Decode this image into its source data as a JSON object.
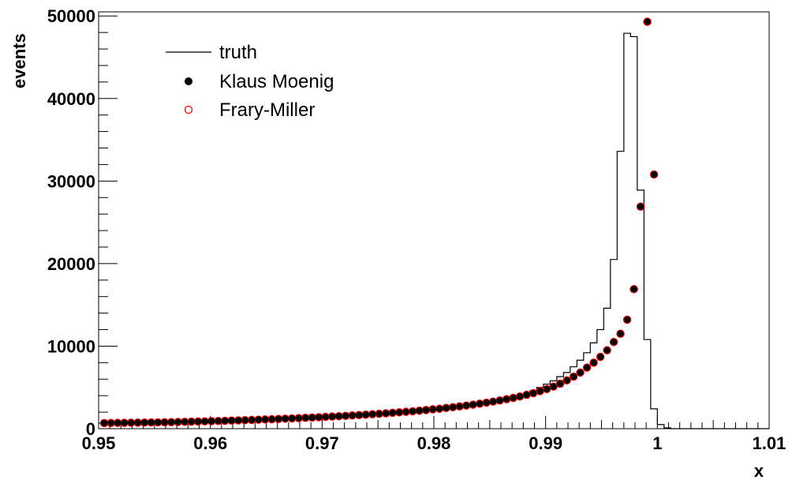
{
  "chart_data": {
    "type": "scatter",
    "xlabel": "x",
    "ylabel": "events",
    "xlim": [
      0.95,
      1.01
    ],
    "ylim": [
      0,
      50500
    ],
    "x_ticks": [
      {
        "value": 0.95,
        "label": "0.95"
      },
      {
        "value": 0.96,
        "label": "0.96"
      },
      {
        "value": 0.97,
        "label": "0.97"
      },
      {
        "value": 0.98,
        "label": "0.98"
      },
      {
        "value": 0.99,
        "label": "0.99"
      },
      {
        "value": 1.0,
        "label": "1"
      },
      {
        "value": 1.01,
        "label": "1.01"
      }
    ],
    "y_ticks": [
      {
        "value": 0,
        "label": "0"
      },
      {
        "value": 10000,
        "label": "10000"
      },
      {
        "value": 20000,
        "label": "20000"
      },
      {
        "value": 30000,
        "label": "30000"
      },
      {
        "value": 40000,
        "label": "40000"
      },
      {
        "value": 50000,
        "label": "50000"
      }
    ],
    "legend": [
      {
        "label": "truth",
        "style": "line"
      },
      {
        "label": "Klaus Moenig",
        "style": "filled-circle"
      },
      {
        "label": "Frary-Miller",
        "style": "open-circle"
      }
    ],
    "legend_position": "top-left",
    "colors": {
      "truth": "#000000",
      "klaus": "#000000",
      "frary": "#ff0000"
    },
    "truth_bin_width": 0.0006,
    "truth": {
      "x_start": [
        0.988,
        0.9886,
        0.9892,
        0.9898,
        0.9904,
        0.991,
        0.9916,
        0.9922,
        0.9928,
        0.9934,
        0.994,
        0.9946,
        0.9952,
        0.9958,
        0.9964,
        0.997,
        0.9976,
        0.9982,
        0.9988,
        0.9994,
        1.0,
        1.0006,
        1.0012,
        1.0018,
        1.0024,
        1.003
      ],
      "counts": [
        4200,
        4600,
        5000,
        5400,
        5800,
        6300,
        6800,
        7500,
        8300,
        9200,
        10400,
        12000,
        14600,
        20500,
        33600,
        47900,
        47500,
        28900,
        10800,
        2400,
        500,
        100,
        0,
        0,
        0,
        0
      ]
    },
    "points_x": [
      0.9505,
      0.9511,
      0.9517,
      0.9523,
      0.9529,
      0.9535,
      0.9541,
      0.9547,
      0.9553,
      0.9559,
      0.9565,
      0.9571,
      0.9577,
      0.9583,
      0.9589,
      0.9595,
      0.9601,
      0.9607,
      0.9613,
      0.9619,
      0.9625,
      0.9631,
      0.9637,
      0.9643,
      0.9649,
      0.9655,
      0.9661,
      0.9667,
      0.9673,
      0.9679,
      0.9685,
      0.9691,
      0.9697,
      0.9703,
      0.9709,
      0.9715,
      0.9721,
      0.9727,
      0.9733,
      0.9739,
      0.9745,
      0.9751,
      0.9757,
      0.9763,
      0.9769,
      0.9775,
      0.9781,
      0.9787,
      0.9793,
      0.9799,
      0.9805,
      0.9811,
      0.9817,
      0.9823,
      0.9829,
      0.9835,
      0.9841,
      0.9847,
      0.9853,
      0.9859,
      0.9865,
      0.9871,
      0.9877,
      0.9883,
      0.9889,
      0.9895,
      0.9901,
      0.9907,
      0.9913,
      0.9919,
      0.9925,
      0.9931,
      0.9937,
      0.9943,
      0.9949,
      0.9955,
      0.9961,
      0.9967,
      0.9973,
      0.9979,
      0.9985,
      0.9991,
      0.9997,
      1.0003,
      1.0009,
      1.0015,
      1.0021,
      1.0027,
      1.0033,
      1.0039,
      1.0045,
      1.0051,
      1.0057,
      1.0063,
      1.0069,
      1.0075,
      1.0081,
      1.0087,
      1.0093,
      1.0099
    ],
    "klaus_moenig": [
      680,
      690,
      700,
      710,
      720,
      730,
      740,
      750,
      760,
      775,
      790,
      810,
      830,
      850,
      870,
      890,
      910,
      930,
      955,
      980,
      1005,
      1030,
      1060,
      1090,
      1120,
      1150,
      1180,
      1210,
      1245,
      1280,
      1315,
      1350,
      1390,
      1430,
      1470,
      1510,
      1550,
      1600,
      1650,
      1700,
      1750,
      1800,
      1860,
      1920,
      1980,
      2040,
      2110,
      2180,
      2260,
      2340,
      2420,
      2510,
      2600,
      2700,
      2800,
      2910,
      3030,
      3150,
      3280,
      3420,
      3570,
      3730,
      3900,
      4100,
      4300,
      4550,
      4800,
      5100,
      5450,
      5850,
      6300,
      6800,
      7400,
      8000,
      8700,
      9500,
      10500,
      11500,
      13200,
      16900,
      26900,
      49300,
      30800,
      0,
      0,
      0,
      0,
      0,
      0,
      0,
      0,
      0,
      0,
      0,
      0,
      0,
      0,
      0,
      0,
      0
    ],
    "frary_miller": [
      680,
      690,
      700,
      710,
      720,
      730,
      740,
      750,
      760,
      775,
      790,
      810,
      830,
      850,
      870,
      890,
      910,
      930,
      955,
      980,
      1005,
      1030,
      1060,
      1090,
      1120,
      1150,
      1180,
      1210,
      1245,
      1280,
      1315,
      1350,
      1390,
      1430,
      1470,
      1510,
      1550,
      1600,
      1650,
      1700,
      1750,
      1800,
      1860,
      1920,
      1980,
      2040,
      2110,
      2180,
      2260,
      2340,
      2420,
      2510,
      2600,
      2700,
      2800,
      2910,
      3030,
      3150,
      3280,
      3420,
      3570,
      3730,
      3900,
      4100,
      4300,
      4550,
      4800,
      5100,
      5450,
      5850,
      6300,
      6800,
      7400,
      8000,
      8700,
      9500,
      10500,
      11500,
      13200,
      16900,
      26900,
      49300,
      30800,
      0,
      0,
      0,
      0,
      0,
      0,
      0,
      0,
      0,
      0,
      0,
      0,
      0,
      0,
      0,
      0,
      0
    ]
  }
}
